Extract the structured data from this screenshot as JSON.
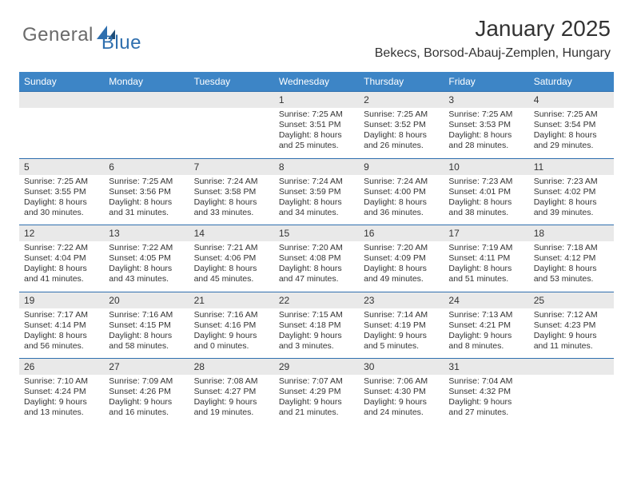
{
  "logo": {
    "general": "General",
    "blue": "Blue"
  },
  "title": {
    "month": "January 2025",
    "location": "Bekecs, Borsod-Abauj-Zemplen, Hungary"
  },
  "theme": {
    "header_bg": "#3d85c6",
    "header_fg": "#ffffff",
    "daynum_bg": "#e9e9e9",
    "row_divider": "#2f6fae",
    "body_bg": "#ffffff",
    "text_color": "#333333",
    "logo_gray": "#6a6a6a",
    "logo_blue": "#2f6fae",
    "title_fontsize_pt": 21,
    "location_fontsize_pt": 12,
    "header_fontsize_pt": 9,
    "daynum_fontsize_pt": 9,
    "details_fontsize_pt": 8
  },
  "calendar": {
    "type": "table",
    "columns": [
      "Sunday",
      "Monday",
      "Tuesday",
      "Wednesday",
      "Thursday",
      "Friday",
      "Saturday"
    ],
    "weeks": [
      [
        null,
        null,
        null,
        {
          "day": "1",
          "sunrise": "Sunrise: 7:25 AM",
          "sunset": "Sunset: 3:51 PM",
          "daylight1": "Daylight: 8 hours",
          "daylight2": "and 25 minutes."
        },
        {
          "day": "2",
          "sunrise": "Sunrise: 7:25 AM",
          "sunset": "Sunset: 3:52 PM",
          "daylight1": "Daylight: 8 hours",
          "daylight2": "and 26 minutes."
        },
        {
          "day": "3",
          "sunrise": "Sunrise: 7:25 AM",
          "sunset": "Sunset: 3:53 PM",
          "daylight1": "Daylight: 8 hours",
          "daylight2": "and 28 minutes."
        },
        {
          "day": "4",
          "sunrise": "Sunrise: 7:25 AM",
          "sunset": "Sunset: 3:54 PM",
          "daylight1": "Daylight: 8 hours",
          "daylight2": "and 29 minutes."
        }
      ],
      [
        {
          "day": "5",
          "sunrise": "Sunrise: 7:25 AM",
          "sunset": "Sunset: 3:55 PM",
          "daylight1": "Daylight: 8 hours",
          "daylight2": "and 30 minutes."
        },
        {
          "day": "6",
          "sunrise": "Sunrise: 7:25 AM",
          "sunset": "Sunset: 3:56 PM",
          "daylight1": "Daylight: 8 hours",
          "daylight2": "and 31 minutes."
        },
        {
          "day": "7",
          "sunrise": "Sunrise: 7:24 AM",
          "sunset": "Sunset: 3:58 PM",
          "daylight1": "Daylight: 8 hours",
          "daylight2": "and 33 minutes."
        },
        {
          "day": "8",
          "sunrise": "Sunrise: 7:24 AM",
          "sunset": "Sunset: 3:59 PM",
          "daylight1": "Daylight: 8 hours",
          "daylight2": "and 34 minutes."
        },
        {
          "day": "9",
          "sunrise": "Sunrise: 7:24 AM",
          "sunset": "Sunset: 4:00 PM",
          "daylight1": "Daylight: 8 hours",
          "daylight2": "and 36 minutes."
        },
        {
          "day": "10",
          "sunrise": "Sunrise: 7:23 AM",
          "sunset": "Sunset: 4:01 PM",
          "daylight1": "Daylight: 8 hours",
          "daylight2": "and 38 minutes."
        },
        {
          "day": "11",
          "sunrise": "Sunrise: 7:23 AM",
          "sunset": "Sunset: 4:02 PM",
          "daylight1": "Daylight: 8 hours",
          "daylight2": "and 39 minutes."
        }
      ],
      [
        {
          "day": "12",
          "sunrise": "Sunrise: 7:22 AM",
          "sunset": "Sunset: 4:04 PM",
          "daylight1": "Daylight: 8 hours",
          "daylight2": "and 41 minutes."
        },
        {
          "day": "13",
          "sunrise": "Sunrise: 7:22 AM",
          "sunset": "Sunset: 4:05 PM",
          "daylight1": "Daylight: 8 hours",
          "daylight2": "and 43 minutes."
        },
        {
          "day": "14",
          "sunrise": "Sunrise: 7:21 AM",
          "sunset": "Sunset: 4:06 PM",
          "daylight1": "Daylight: 8 hours",
          "daylight2": "and 45 minutes."
        },
        {
          "day": "15",
          "sunrise": "Sunrise: 7:20 AM",
          "sunset": "Sunset: 4:08 PM",
          "daylight1": "Daylight: 8 hours",
          "daylight2": "and 47 minutes."
        },
        {
          "day": "16",
          "sunrise": "Sunrise: 7:20 AM",
          "sunset": "Sunset: 4:09 PM",
          "daylight1": "Daylight: 8 hours",
          "daylight2": "and 49 minutes."
        },
        {
          "day": "17",
          "sunrise": "Sunrise: 7:19 AM",
          "sunset": "Sunset: 4:11 PM",
          "daylight1": "Daylight: 8 hours",
          "daylight2": "and 51 minutes."
        },
        {
          "day": "18",
          "sunrise": "Sunrise: 7:18 AM",
          "sunset": "Sunset: 4:12 PM",
          "daylight1": "Daylight: 8 hours",
          "daylight2": "and 53 minutes."
        }
      ],
      [
        {
          "day": "19",
          "sunrise": "Sunrise: 7:17 AM",
          "sunset": "Sunset: 4:14 PM",
          "daylight1": "Daylight: 8 hours",
          "daylight2": "and 56 minutes."
        },
        {
          "day": "20",
          "sunrise": "Sunrise: 7:16 AM",
          "sunset": "Sunset: 4:15 PM",
          "daylight1": "Daylight: 8 hours",
          "daylight2": "and 58 minutes."
        },
        {
          "day": "21",
          "sunrise": "Sunrise: 7:16 AM",
          "sunset": "Sunset: 4:16 PM",
          "daylight1": "Daylight: 9 hours",
          "daylight2": "and 0 minutes."
        },
        {
          "day": "22",
          "sunrise": "Sunrise: 7:15 AM",
          "sunset": "Sunset: 4:18 PM",
          "daylight1": "Daylight: 9 hours",
          "daylight2": "and 3 minutes."
        },
        {
          "day": "23",
          "sunrise": "Sunrise: 7:14 AM",
          "sunset": "Sunset: 4:19 PM",
          "daylight1": "Daylight: 9 hours",
          "daylight2": "and 5 minutes."
        },
        {
          "day": "24",
          "sunrise": "Sunrise: 7:13 AM",
          "sunset": "Sunset: 4:21 PM",
          "daylight1": "Daylight: 9 hours",
          "daylight2": "and 8 minutes."
        },
        {
          "day": "25",
          "sunrise": "Sunrise: 7:12 AM",
          "sunset": "Sunset: 4:23 PM",
          "daylight1": "Daylight: 9 hours",
          "daylight2": "and 11 minutes."
        }
      ],
      [
        {
          "day": "26",
          "sunrise": "Sunrise: 7:10 AM",
          "sunset": "Sunset: 4:24 PM",
          "daylight1": "Daylight: 9 hours",
          "daylight2": "and 13 minutes."
        },
        {
          "day": "27",
          "sunrise": "Sunrise: 7:09 AM",
          "sunset": "Sunset: 4:26 PM",
          "daylight1": "Daylight: 9 hours",
          "daylight2": "and 16 minutes."
        },
        {
          "day": "28",
          "sunrise": "Sunrise: 7:08 AM",
          "sunset": "Sunset: 4:27 PM",
          "daylight1": "Daylight: 9 hours",
          "daylight2": "and 19 minutes."
        },
        {
          "day": "29",
          "sunrise": "Sunrise: 7:07 AM",
          "sunset": "Sunset: 4:29 PM",
          "daylight1": "Daylight: 9 hours",
          "daylight2": "and 21 minutes."
        },
        {
          "day": "30",
          "sunrise": "Sunrise: 7:06 AM",
          "sunset": "Sunset: 4:30 PM",
          "daylight1": "Daylight: 9 hours",
          "daylight2": "and 24 minutes."
        },
        {
          "day": "31",
          "sunrise": "Sunrise: 7:04 AM",
          "sunset": "Sunset: 4:32 PM",
          "daylight1": "Daylight: 9 hours",
          "daylight2": "and 27 minutes."
        },
        null
      ]
    ]
  }
}
